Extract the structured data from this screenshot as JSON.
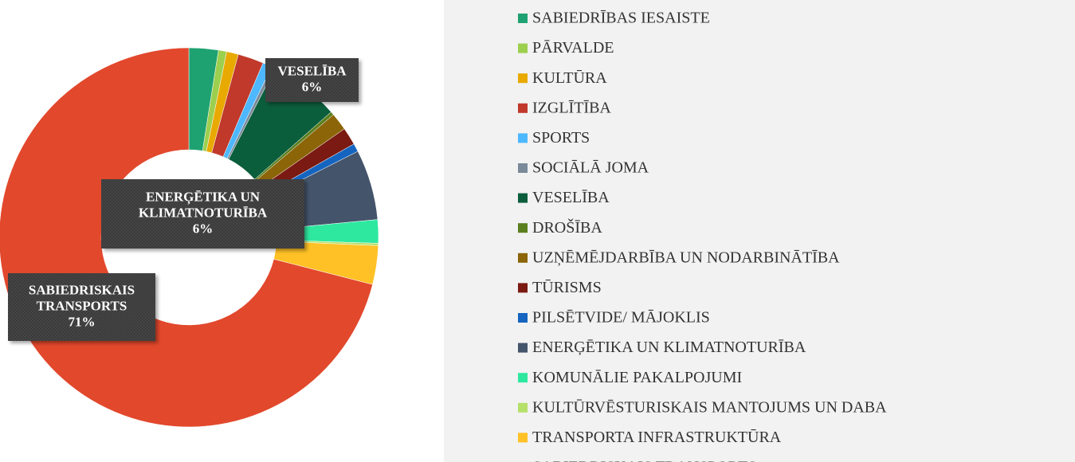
{
  "chart_data": {
    "type": "donut",
    "categories": [
      "SABIEDRĪBAS IESAISTE",
      "PĀRVALDE",
      "KULTŪRA",
      "IZGLĪTĪBA",
      "SPORTS",
      "SOCIĀLĀ JOMA",
      "VESELĪBA",
      "DROŠĪBA",
      "UZŅĒMĒJDARBĪBA UN NODARBINĀTĪBA",
      "TŪRISMS",
      "PILSĒTVIDE/ MĀJOKLIS",
      "ENERĢĒTIKA UN KLIMATNOTURĪBA",
      "KOMUNĀLIE PAKALPOJUMI",
      "KULTŪRVĒSTURISKAIS MANTOJUMS UN DABA",
      "TRANSPORTA INFRASTRUKTŪRA",
      "SABIEDRISKAIS TRANSPORTS"
    ],
    "values": [
      2.5,
      0.7,
      1,
      2.2,
      0.8,
      0.3,
      6,
      0.3,
      1.5,
      1.5,
      0.7,
      6,
      2,
      0.2,
      3.3,
      71
    ],
    "value_labels": [
      null,
      null,
      null,
      null,
      null,
      null,
      "6%",
      null,
      null,
      null,
      null,
      "6%",
      null,
      null,
      null,
      "71%"
    ],
    "colors": [
      "#1fa271",
      "#9dcf4e",
      "#e8a900",
      "#c0392b",
      "#4db8ff",
      "#7a8a99",
      "#0b5e3c",
      "#5b7f1f",
      "#8b6508",
      "#7a1a12",
      "#1565c0",
      "#44546a",
      "#2ee8a0",
      "#b5e06a",
      "#ffc125",
      "#e2482c"
    ],
    "legend": "right"
  }
}
